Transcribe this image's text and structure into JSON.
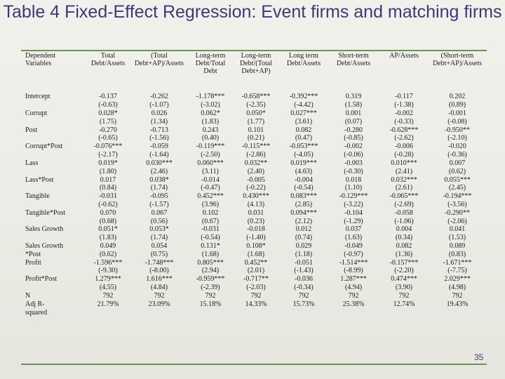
{
  "title": "Table 4 Fixed-Effect Regression: Event firms and matching firms",
  "page_number": "35",
  "headers": [
    "Dependent\nVariables",
    "Total\nDebt/Assets",
    "(Total\nDebt+AP)/Assets",
    "Long-term\nDebt/Total\nDebt",
    "Long-term\nDebt/(Total\nDebt+AP)",
    "Long term\nDebt/Assets",
    "Short-term\nDebt/Assets",
    "AP/Assets",
    "(Short-term\nDebt+AP)/Assets"
  ],
  "rows": [
    [
      "Intercept",
      "-0.137",
      "-0.262",
      "-1.178***",
      "-0.658***",
      "-0.392***",
      "0.319",
      "-0.117",
      "0.202"
    ],
    [
      "",
      "(-0.63)",
      "(-1.07)",
      "(-3.02)",
      "(-2.35)",
      "(-4.42)",
      "(1.58)",
      "(-1.38)",
      "(0.89)"
    ],
    [
      "Corrupt",
      "0.028*",
      "0.026",
      "0.062*",
      "0.050*",
      "0.027***",
      "0.001",
      "-0.002",
      "-0.001"
    ],
    [
      "",
      "(1.75)",
      "(1.34)",
      "(1.83)",
      "(1.77)",
      "(3.61)",
      "(0.07)",
      "(-0.33)",
      "(-0.08)"
    ],
    [
      "Post",
      "-0.270",
      "-0.713",
      "0.243",
      "0.101",
      "0.082",
      "-0.280",
      "-0.628***",
      "-0.950**"
    ],
    [
      "",
      "(-0.65)",
      "(-1.56)",
      "(0.40)",
      "(0.21)",
      "(0.47)",
      "(-0.85)",
      "(-2.62)",
      "(-2.10)"
    ],
    [
      "Corrupt*Post",
      "-0.076***",
      "-0.059",
      "-0.119***",
      "-0.115***",
      "-0.053***",
      "-0.002",
      "-0.006",
      "-0.020"
    ],
    [
      "",
      "(-2.17)",
      "(-1.64)",
      "(-2.50)",
      "(-2.86)",
      "(-4.05)",
      "(-0.06)",
      "(-0.28)",
      "(-0.36)"
    ],
    [
      "Lass",
      "0.019*",
      "0.030***",
      "0.060***",
      "0.032**",
      "0.019***",
      "-0.003",
      "0.010***",
      "0.007"
    ],
    [
      "",
      "(1.80)",
      "(2.46)",
      "(3.11)",
      "(2.40)",
      "(4.63)",
      "(-0.30)",
      "(2.41)",
      "(0.62)"
    ],
    [
      "Lass*Post",
      "0.017",
      "0.038*",
      "-0.014",
      "-0.005",
      "-0.004",
      "0.018",
      "0.032***",
      "0.055***"
    ],
    [
      "",
      "(0.84)",
      "(1.74)",
      "(-0.47)",
      "(-0.22)",
      "(-0.54)",
      "(1.10)",
      "(2.61)",
      "(2.45)"
    ],
    [
      "Tangible",
      "-0.031",
      "-0.095",
      "0.452***",
      "0.430***",
      "0.083***",
      "-0.129***",
      "-0.065***",
      "-0.194***"
    ],
    [
      "",
      "(-0.62)",
      "(-1.57)",
      "(3.96)",
      "(4.13)",
      "(2.85)",
      "(-3.22)",
      "(-2.69)",
      "(-3.56)"
    ],
    [
      "Tangible*Post",
      "0.070",
      "0.067",
      "0.102",
      "0.031",
      "0.094***",
      "-0.104",
      "-0.058",
      "-0.290**"
    ],
    [
      "",
      "(0.68)",
      "(0.56)",
      "(0.67)",
      "(0.23)",
      "(2.12)",
      "(-1.29)",
      "(-1.06)",
      "(-2.06)"
    ],
    [
      "Sales Growth",
      "0.051*",
      "0.053*",
      "-0.031",
      "-0.018",
      "0.012",
      "0.037",
      "0.004",
      "0.041"
    ],
    [
      "",
      "(1.83)",
      "(1.74)",
      "(-0.54)",
      "(-1.40)",
      "(0.74)",
      "(1.63)",
      "(0.34)",
      "(1.53)"
    ],
    [
      "Sales Growth",
      "0.049",
      "0.054",
      "0.131*",
      "0.108*",
      "0.029",
      "-0.049",
      "0.082",
      "0.089"
    ],
    [
      "*Post",
      "(0.62)",
      "(0.75)",
      "(1.68)",
      "(1.68)",
      "(1.18)",
      "(-0.97)",
      "(1.36)",
      "(0.83)"
    ],
    [
      "Profit",
      "-1.596***",
      "-1.748***",
      "0.805***",
      "0.452**",
      "-0.051",
      "-1.514***",
      "-0.157***",
      "-1.671***"
    ],
    [
      "",
      "(-9.30)",
      "(-8.00)",
      "(2.94)",
      "(2.01)",
      "(-1.43)",
      "(-8.99)",
      "(-2.20)",
      "(-7.75)"
    ],
    [
      "Profit*Post",
      "1.279***",
      "1.616***",
      "-0.959***",
      "-0.717**",
      "-0.036",
      "1.287***",
      "0.474***",
      "2.029***"
    ],
    [
      "",
      "(4.55)",
      "(4.84)",
      "(-2.39)",
      "(-2.03)",
      "(-0.34)",
      "(4.94)",
      "(3.90)",
      "(4.98)"
    ],
    [
      "N",
      "792",
      "792",
      "792",
      "792",
      "792",
      "792",
      "792",
      "792"
    ],
    [
      "Adj R-",
      "21.79%",
      "23.09%",
      "15.18%",
      "14.33%",
      "15.73%",
      "25.38%",
      "12.74%",
      "19.43%"
    ],
    [
      "squared",
      "",
      "",
      "",
      "",
      "",
      "",
      "",
      ""
    ]
  ]
}
